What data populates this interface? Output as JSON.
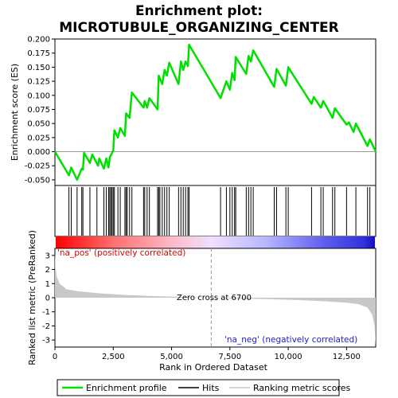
{
  "chart_data": {
    "type": "line",
    "title_line1": "Enrichment plot:",
    "title_line2": "MICROTUBULE_ORGANIZING_CENTER",
    "es_panel": {
      "ylabel": "Enrichment score (ES)",
      "ylim": [
        -0.06,
        0.2
      ],
      "yticks": [
        "0.200",
        "0.175",
        "0.150",
        "0.125",
        "0.100",
        "0.075",
        "0.050",
        "0.025",
        "0.000",
        "-0.025",
        "-0.050"
      ],
      "ytick_values": [
        0.2,
        0.175,
        0.15,
        0.125,
        0.1,
        0.075,
        0.05,
        0.025,
        0.0,
        -0.025,
        -0.05
      ],
      "color": "#00e000",
      "points": [
        [
          0,
          0.0
        ],
        [
          600,
          -0.042
        ],
        [
          700,
          -0.028
        ],
        [
          950,
          -0.05
        ],
        [
          1150,
          -0.03
        ],
        [
          1200,
          -0.032
        ],
        [
          1250,
          -0.002
        ],
        [
          1500,
          -0.02
        ],
        [
          1600,
          -0.005
        ],
        [
          1850,
          -0.025
        ],
        [
          1900,
          -0.012
        ],
        [
          2100,
          -0.03
        ],
        [
          2200,
          -0.012
        ],
        [
          2300,
          -0.028
        ],
        [
          2350,
          -0.01
        ],
        [
          2500,
          0.002
        ],
        [
          2550,
          0.038
        ],
        [
          2700,
          0.025
        ],
        [
          2800,
          0.042
        ],
        [
          3000,
          0.028
        ],
        [
          3050,
          0.068
        ],
        [
          3200,
          0.06
        ],
        [
          3300,
          0.105
        ],
        [
          3800,
          0.078
        ],
        [
          3850,
          0.09
        ],
        [
          3950,
          0.078
        ],
        [
          4050,
          0.095
        ],
        [
          4400,
          0.075
        ],
        [
          4450,
          0.135
        ],
        [
          4600,
          0.12
        ],
        [
          4700,
          0.145
        ],
        [
          4800,
          0.135
        ],
        [
          4900,
          0.158
        ],
        [
          5300,
          0.12
        ],
        [
          5400,
          0.16
        ],
        [
          5500,
          0.145
        ],
        [
          5600,
          0.16
        ],
        [
          5700,
          0.152
        ],
        [
          5750,
          0.19
        ],
        [
          7100,
          0.095
        ],
        [
          7350,
          0.125
        ],
        [
          7500,
          0.11
        ],
        [
          7600,
          0.14
        ],
        [
          7700,
          0.127
        ],
        [
          7750,
          0.168
        ],
        [
          8200,
          0.138
        ],
        [
          8300,
          0.17
        ],
        [
          8400,
          0.16
        ],
        [
          8500,
          0.18
        ],
        [
          9400,
          0.115
        ],
        [
          9500,
          0.147
        ],
        [
          9900,
          0.117
        ],
        [
          10000,
          0.15
        ],
        [
          11000,
          0.085
        ],
        [
          11100,
          0.097
        ],
        [
          11400,
          0.078
        ],
        [
          11500,
          0.09
        ],
        [
          11900,
          0.06
        ],
        [
          12000,
          0.077
        ],
        [
          12500,
          0.048
        ],
        [
          12600,
          0.052
        ],
        [
          12800,
          0.035
        ],
        [
          12900,
          0.05
        ],
        [
          13400,
          0.01
        ],
        [
          13500,
          0.022
        ],
        [
          13750,
          0.0
        ]
      ]
    },
    "hits": {
      "positions": [
        600,
        700,
        950,
        1150,
        1200,
        1500,
        1800,
        2100,
        2200,
        2300,
        2350,
        2400,
        2450,
        2500,
        2550,
        2700,
        2800,
        3000,
        3050,
        3100,
        3200,
        3300,
        3800,
        3850,
        3950,
        4050,
        4400,
        4450,
        4500,
        4600,
        4700,
        4800,
        4900,
        5300,
        5400,
        5500,
        5600,
        5700,
        5750,
        7100,
        7350,
        7500,
        7600,
        7700,
        7750,
        8200,
        8300,
        8400,
        8500,
        9400,
        9500,
        9900,
        10000,
        11000,
        11400,
        11500,
        11900,
        12000,
        12500,
        12900,
        13400,
        13500
      ]
    },
    "colorbar": {
      "stops": [
        {
          "x": 0,
          "color": "#ff0000"
        },
        {
          "x": 2500,
          "color": "#ff7070"
        },
        {
          "x": 5000,
          "color": "#ffb8c8"
        },
        {
          "x": 6700,
          "color": "#f0e0ff"
        },
        {
          "x": 9000,
          "color": "#b8b8ff"
        },
        {
          "x": 11500,
          "color": "#6060f0"
        },
        {
          "x": 13300,
          "color": "#3030e0"
        },
        {
          "x": 13750,
          "color": "#1010c0"
        }
      ]
    },
    "rank_panel": {
      "ylabel": "Ranked list metric (PreRanked)",
      "ylim": [
        -3.5,
        3.5
      ],
      "yticks": [
        "3",
        "2",
        "1",
        "0",
        "-1",
        "-2",
        "-3"
      ],
      "ytick_values": [
        3,
        2,
        1,
        0,
        -1,
        -2,
        -3
      ],
      "color": "#c8c8c8",
      "points": [
        [
          0,
          3.2
        ],
        [
          30,
          2.1
        ],
        [
          80,
          1.5
        ],
        [
          200,
          1.0
        ],
        [
          500,
          0.6
        ],
        [
          1000,
          0.45
        ],
        [
          2000,
          0.3
        ],
        [
          3000,
          0.2
        ],
        [
          4000,
          0.13
        ],
        [
          5000,
          0.08
        ],
        [
          6000,
          0.03
        ],
        [
          6700,
          0.0
        ],
        [
          7500,
          -0.04
        ],
        [
          8500,
          -0.08
        ],
        [
          9500,
          -0.12
        ],
        [
          10500,
          -0.17
        ],
        [
          11500,
          -0.25
        ],
        [
          12500,
          -0.35
        ],
        [
          13000,
          -0.45
        ],
        [
          13400,
          -0.7
        ],
        [
          13600,
          -1.2
        ],
        [
          13700,
          -2.0
        ],
        [
          13750,
          -3.4
        ]
      ],
      "pos_label": "'na_pos' (positively correlated)",
      "neg_label": "'na_neg' (negatively correlated)",
      "zero_cross_label": "Zero cross at 6700",
      "zero_cross": 6700
    },
    "x_axis": {
      "label": "Rank in Ordered Dataset",
      "xlim": [
        0,
        13750
      ],
      "ticks": [
        "0",
        "2,500",
        "5,000",
        "7,500",
        "10,000",
        "12,500"
      ],
      "tick_values": [
        0,
        2500,
        5000,
        7500,
        10000,
        12500
      ]
    },
    "legend": {
      "items": [
        "Enrichment profile",
        "Hits",
        "Ranking metric scores"
      ],
      "colors": [
        "#00e000",
        "#000000",
        "#c8c8c8"
      ]
    }
  }
}
